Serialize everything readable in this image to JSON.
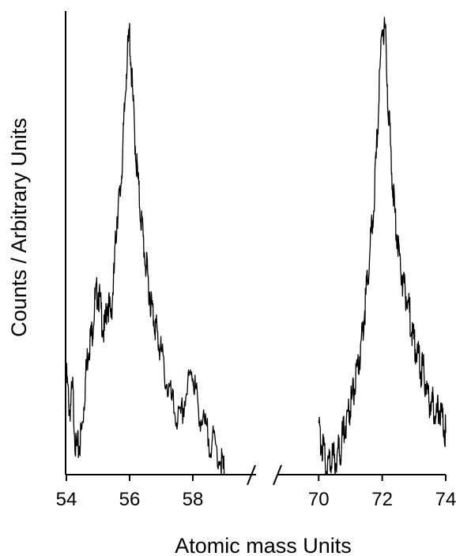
{
  "chart_data": {
    "type": "line",
    "xlabel": "Atomic mass Units",
    "ylabel": "Counts / Arbitrary Units",
    "y_tick_labels": false,
    "grid": false,
    "axis_break": true,
    "colors": {
      "line": "#000000",
      "axis": "#000000"
    },
    "segments": [
      {
        "xlim": [
          54,
          60
        ],
        "ticks": [
          54,
          56,
          58
        ],
        "tick_labels": [
          "54",
          "56",
          "58"
        ],
        "x": [
          54.0,
          54.1,
          54.2,
          54.3,
          54.4,
          54.5,
          54.6,
          54.7,
          54.8,
          54.9,
          55.0,
          55.1,
          55.2,
          55.3,
          55.4,
          55.5,
          55.6,
          55.7,
          55.8,
          55.9,
          56.0,
          56.1,
          56.2,
          56.3,
          56.4,
          56.5,
          56.6,
          56.7,
          56.8,
          56.9,
          57.0,
          57.2,
          57.4,
          57.6,
          57.8,
          58.0,
          58.1,
          58.3,
          58.5,
          58.7,
          58.9,
          59.0
        ],
        "y": [
          0.21,
          0.14,
          0.18,
          0.05,
          0.06,
          0.1,
          0.2,
          0.28,
          0.3,
          0.37,
          0.4,
          0.35,
          0.3,
          0.38,
          0.34,
          0.42,
          0.56,
          0.6,
          0.72,
          0.88,
          0.95,
          0.81,
          0.69,
          0.6,
          0.53,
          0.46,
          0.41,
          0.36,
          0.33,
          0.29,
          0.26,
          0.19,
          0.14,
          0.11,
          0.18,
          0.22,
          0.17,
          0.11,
          0.08,
          0.06,
          0.03,
          0.0
        ]
      },
      {
        "xlim": [
          68.7,
          74
        ],
        "ticks": [
          70,
          72,
          74
        ],
        "tick_labels": [
          "70",
          "72",
          "74"
        ],
        "x": [
          70.0,
          70.1,
          70.2,
          70.3,
          70.4,
          70.5,
          70.6,
          70.7,
          70.8,
          70.9,
          71.0,
          71.1,
          71.2,
          71.3,
          71.4,
          71.5,
          71.6,
          71.7,
          71.8,
          71.9,
          72.0,
          72.1,
          72.2,
          72.3,
          72.4,
          72.5,
          72.6,
          72.7,
          72.8,
          72.9,
          73.0,
          73.1,
          73.2,
          73.3,
          73.4,
          73.5,
          73.6,
          73.7,
          73.8,
          73.9,
          74.0
        ],
        "y": [
          0.09,
          0.07,
          0.03,
          0.02,
          0.04,
          0.03,
          0.05,
          0.06,
          0.1,
          0.13,
          0.15,
          0.18,
          0.21,
          0.26,
          0.32,
          0.39,
          0.47,
          0.55,
          0.66,
          0.82,
          0.98,
          0.95,
          0.78,
          0.66,
          0.56,
          0.5,
          0.44,
          0.4,
          0.38,
          0.33,
          0.28,
          0.26,
          0.23,
          0.22,
          0.18,
          0.16,
          0.15,
          0.13,
          0.14,
          0.12,
          0.09
        ]
      }
    ]
  }
}
